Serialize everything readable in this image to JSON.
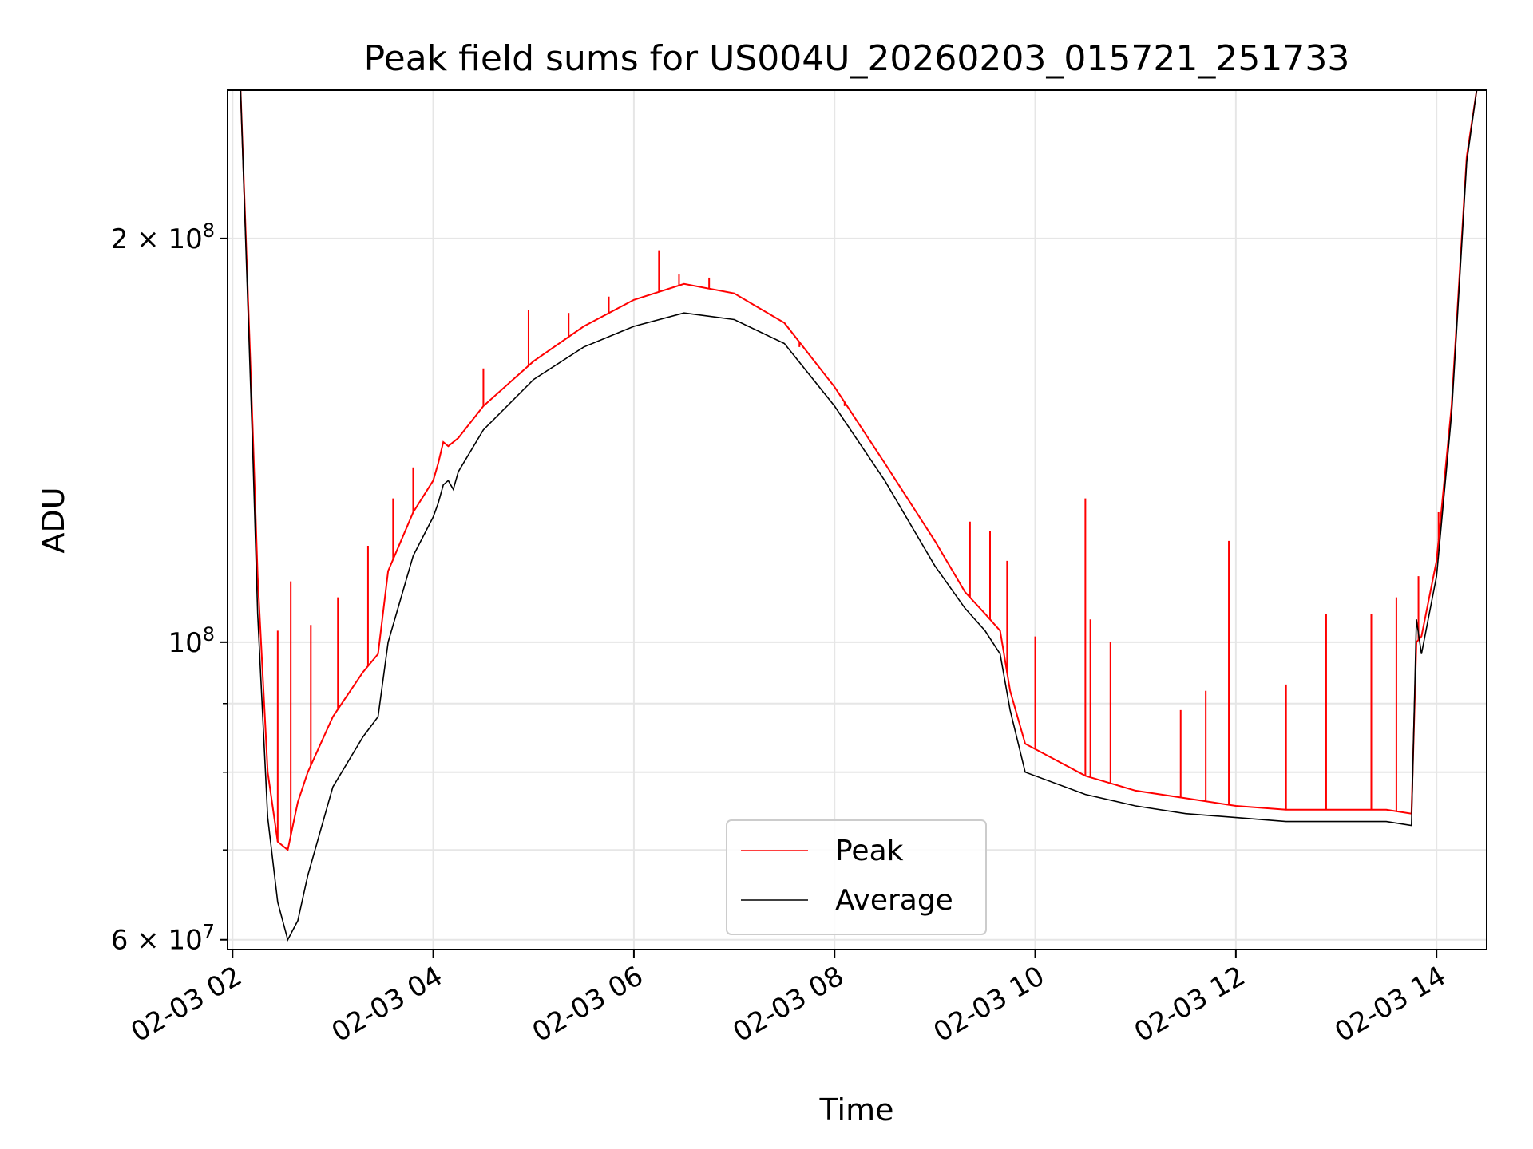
{
  "chart_data": {
    "type": "line",
    "title": "Peak field sums for US004U_20260203_015721_251733",
    "xlabel": "Time",
    "ylabel": "ADU",
    "yscale": "log",
    "grid": true,
    "legend_position": "lower-center",
    "x_range_hours": [
      1.95,
      14.5
    ],
    "ylim": [
      59000000,
      258000000
    ],
    "x_ticks": [
      {
        "hour": 2,
        "label": "02-03 02"
      },
      {
        "hour": 4,
        "label": "02-03 04"
      },
      {
        "hour": 6,
        "label": "02-03 06"
      },
      {
        "hour": 8,
        "label": "02-03 08"
      },
      {
        "hour": 10,
        "label": "02-03 10"
      },
      {
        "hour": 12,
        "label": "02-03 12"
      },
      {
        "hour": 14,
        "label": "02-03 14"
      }
    ],
    "y_ticks": [
      {
        "value": 200000000,
        "base": "2 × 10",
        "exp": "8"
      },
      {
        "value": 100000000,
        "base": "10",
        "exp": "8"
      },
      {
        "value": 60000000,
        "base": "6 × 10",
        "exp": "7"
      }
    ],
    "y_minor_ticks": [
      70000000,
      80000000,
      90000000
    ],
    "series": [
      {
        "name": "Peak",
        "color": "#ff0000",
        "x_hours": [
          2.08,
          2.2,
          2.25,
          2.35,
          2.45,
          2.55,
          2.65,
          2.75,
          3.0,
          3.3,
          3.45,
          3.55,
          3.8,
          4.0,
          4.05,
          4.1,
          4.15,
          4.25,
          4.5,
          5.0,
          5.5,
          6.0,
          6.5,
          7.0,
          7.5,
          8.0,
          8.5,
          9.0,
          9.3,
          9.5,
          9.65,
          9.75,
          9.9,
          10.5,
          11.0,
          11.5,
          12.0,
          12.5,
          13.0,
          13.5,
          13.75,
          13.8,
          13.85,
          14.0,
          14.15,
          14.3,
          14.4
        ],
        "values": [
          258000000,
          145000000,
          112000000,
          80000000,
          71000000,
          70000000,
          76000000,
          80000000,
          88000000,
          95000000,
          98000000,
          113000000,
          125000000,
          132000000,
          136000000,
          141000000,
          140000000,
          142000000,
          150000000,
          162000000,
          172000000,
          180000000,
          185000000,
          182000000,
          173000000,
          155000000,
          136000000,
          119000000,
          109000000,
          105000000,
          102000000,
          92000000,
          84000000,
          79500000,
          77500000,
          76500000,
          75500000,
          75000000,
          75000000,
          75000000,
          74500000,
          100000000,
          101000000,
          115000000,
          150000000,
          230000000,
          258000000
        ],
        "spikes": [
          {
            "hour": 2.45,
            "value": 102000000
          },
          {
            "hour": 2.58,
            "value": 111000000
          },
          {
            "hour": 2.78,
            "value": 103000000
          },
          {
            "hour": 3.05,
            "value": 108000000
          },
          {
            "hour": 3.35,
            "value": 118000000
          },
          {
            "hour": 3.6,
            "value": 128000000
          },
          {
            "hour": 3.8,
            "value": 135000000
          },
          {
            "hour": 4.5,
            "value": 160000000
          },
          {
            "hour": 4.95,
            "value": 177000000
          },
          {
            "hour": 5.35,
            "value": 176000000
          },
          {
            "hour": 5.75,
            "value": 181000000
          },
          {
            "hour": 6.25,
            "value": 196000000
          },
          {
            "hour": 6.45,
            "value": 188000000
          },
          {
            "hour": 6.75,
            "value": 187000000
          },
          {
            "hour": 7.2,
            "value": 178000000
          },
          {
            "hour": 7.65,
            "value": 166000000
          },
          {
            "hour": 8.1,
            "value": 150000000
          },
          {
            "hour": 8.5,
            "value": 136000000
          },
          {
            "hour": 9.35,
            "value": 123000000
          },
          {
            "hour": 9.55,
            "value": 121000000
          },
          {
            "hour": 9.72,
            "value": 115000000
          },
          {
            "hour": 10.0,
            "value": 101000000
          },
          {
            "hour": 10.5,
            "value": 128000000
          },
          {
            "hour": 10.55,
            "value": 104000000
          },
          {
            "hour": 10.75,
            "value": 100000000
          },
          {
            "hour": 11.45,
            "value": 89000000
          },
          {
            "hour": 11.7,
            "value": 92000000
          },
          {
            "hour": 11.93,
            "value": 119000000
          },
          {
            "hour": 12.5,
            "value": 93000000
          },
          {
            "hour": 12.9,
            "value": 105000000
          },
          {
            "hour": 13.35,
            "value": 105000000
          },
          {
            "hour": 13.6,
            "value": 108000000
          },
          {
            "hour": 13.82,
            "value": 112000000
          },
          {
            "hour": 14.02,
            "value": 125000000
          }
        ]
      },
      {
        "name": "Average",
        "color": "#000000",
        "x_hours": [
          2.08,
          2.2,
          2.25,
          2.35,
          2.45,
          2.55,
          2.65,
          2.75,
          3.0,
          3.3,
          3.45,
          3.55,
          3.8,
          4.0,
          4.05,
          4.1,
          4.15,
          4.2,
          4.25,
          4.5,
          5.0,
          5.5,
          6.0,
          6.5,
          7.0,
          7.5,
          8.0,
          8.5,
          9.0,
          9.3,
          9.5,
          9.65,
          9.75,
          9.9,
          10.5,
          11.0,
          11.5,
          12.0,
          12.5,
          13.0,
          13.5,
          13.75,
          13.8,
          13.85,
          14.0,
          14.15,
          14.3,
          14.4
        ],
        "values": [
          258000000,
          140000000,
          105000000,
          74000000,
          64000000,
          60000000,
          62000000,
          67000000,
          78000000,
          85000000,
          88000000,
          100000000,
          116000000,
          124000000,
          127000000,
          131000000,
          132000000,
          130000000,
          134000000,
          144000000,
          157000000,
          166000000,
          172000000,
          176000000,
          174000000,
          167000000,
          150000000,
          132000000,
          114000000,
          106000000,
          102000000,
          98000000,
          89000000,
          80000000,
          77000000,
          75500000,
          74500000,
          74000000,
          73500000,
          73500000,
          73500000,
          73000000,
          104000000,
          98000000,
          112000000,
          148000000,
          228000000,
          258000000
        ]
      }
    ],
    "legend": [
      "Peak",
      "Average"
    ]
  }
}
